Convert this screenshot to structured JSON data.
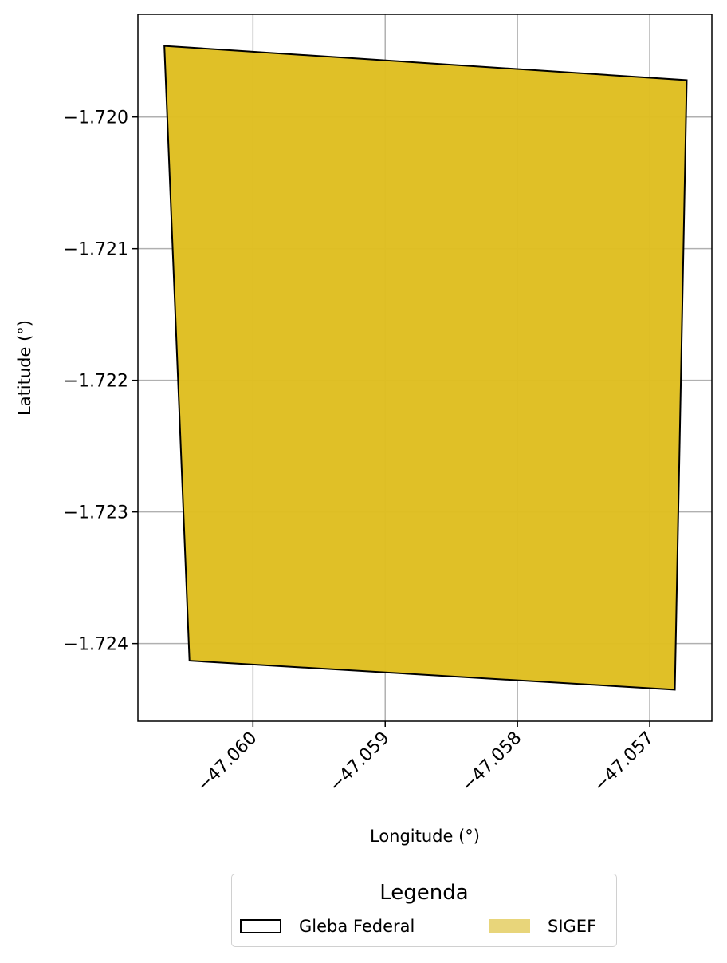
{
  "chart_data": {
    "type": "map",
    "xlabel": "Longitude (°)",
    "ylabel": "Latitude (°)",
    "xlim": [
      -47.06087,
      -47.05653
    ],
    "ylim": [
      -1.72459,
      -1.71922
    ],
    "x_ticks": [
      -47.06,
      -47.059,
      -47.058,
      -47.057
    ],
    "x_tick_labels": [
      "−47.060",
      "−47.059",
      "−47.058",
      "−47.057"
    ],
    "y_ticks": [
      -1.72,
      -1.721,
      -1.722,
      -1.723,
      -1.724
    ],
    "y_tick_labels": [
      "−1.720",
      "−1.721",
      "−1.722",
      "−1.723",
      "−1.724"
    ],
    "grid": true,
    "polygon": {
      "name": "SIGEF",
      "fill": "#DFBE20",
      "edge": "#000000",
      "vertices": [
        [
          -47.06067,
          -1.71946
        ],
        [
          -47.05672,
          -1.71972
        ],
        [
          -47.05681,
          -1.72435
        ],
        [
          -47.06048,
          -1.72413
        ]
      ]
    },
    "legend": {
      "title": "Legenda",
      "placement": "bottom-center",
      "items": [
        {
          "label": "Gleba Federal",
          "style": "outline",
          "edge": "#000000"
        },
        {
          "label": "SIGEF",
          "style": "fill",
          "fill": "#E8D57A"
        }
      ]
    }
  }
}
